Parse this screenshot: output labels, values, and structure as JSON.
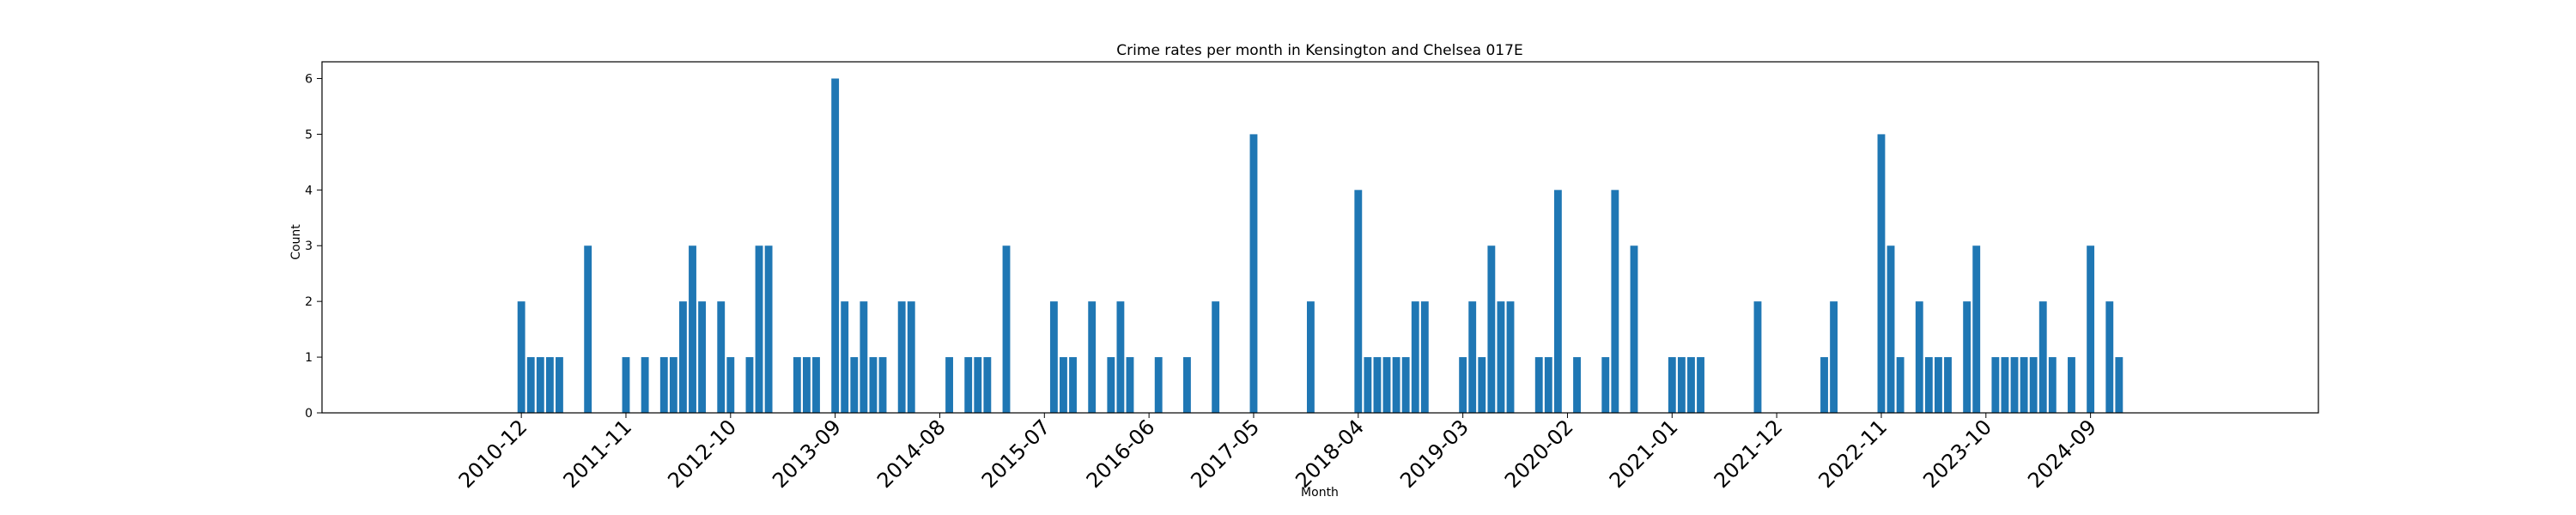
{
  "chart_data": {
    "type": "bar",
    "title": "Crime rates per month in Kensington and Chelsea 017E",
    "xlabel": "Month",
    "ylabel": "Count",
    "ylim": [
      0,
      6.3
    ],
    "yticks": [
      0,
      1,
      2,
      3,
      4,
      5,
      6
    ],
    "xtick_labels": [
      "2010-12",
      "2011-11",
      "2012-10",
      "2013-09",
      "2014-08",
      "2015-07",
      "2016-06",
      "2017-05",
      "2018-04",
      "2019-03",
      "2020-02",
      "2021-01",
      "2021-12",
      "2022-11",
      "2023-10",
      "2024-09"
    ],
    "x": [
      "2010-12",
      "2011-01",
      "2011-02",
      "2011-03",
      "2011-04",
      "2011-07",
      "2011-11",
      "2012-01",
      "2012-03",
      "2012-04",
      "2012-05",
      "2012-06",
      "2012-07",
      "2012-09",
      "2012-10",
      "2012-12",
      "2013-01",
      "2013-02",
      "2013-05",
      "2013-06",
      "2013-07",
      "2013-09",
      "2013-10",
      "2013-11",
      "2013-12",
      "2014-01",
      "2014-02",
      "2014-04",
      "2014-05",
      "2014-09",
      "2014-11",
      "2014-12",
      "2015-01",
      "2015-03",
      "2015-08",
      "2015-09",
      "2015-10",
      "2015-12",
      "2016-02",
      "2016-03",
      "2016-04",
      "2016-07",
      "2016-10",
      "2017-01",
      "2017-05",
      "2017-11",
      "2018-04",
      "2018-05",
      "2018-06",
      "2018-07",
      "2018-08",
      "2018-09",
      "2018-10",
      "2018-11",
      "2019-03",
      "2019-04",
      "2019-05",
      "2019-06",
      "2019-07",
      "2019-08",
      "2019-11",
      "2019-12",
      "2020-01",
      "2020-03",
      "2020-06",
      "2020-07",
      "2020-09",
      "2021-01",
      "2021-02",
      "2021-03",
      "2021-04",
      "2021-10",
      "2022-05",
      "2022-06",
      "2022-11",
      "2022-12",
      "2023-01",
      "2023-03",
      "2023-04",
      "2023-05",
      "2023-06",
      "2023-08",
      "2023-09",
      "2023-11",
      "2023-12",
      "2024-01",
      "2024-02",
      "2024-03",
      "2024-04",
      "2024-05",
      "2024-07",
      "2024-09",
      "2024-11",
      "2024-12"
    ],
    "values": [
      2,
      1,
      1,
      1,
      1,
      3,
      1,
      1,
      1,
      1,
      2,
      3,
      2,
      2,
      1,
      1,
      3,
      3,
      1,
      1,
      1,
      6,
      2,
      1,
      2,
      1,
      1,
      2,
      2,
      1,
      1,
      1,
      1,
      3,
      2,
      1,
      1,
      2,
      1,
      2,
      1,
      1,
      1,
      2,
      5,
      2,
      4,
      1,
      1,
      1,
      1,
      1,
      2,
      2,
      1,
      2,
      1,
      3,
      2,
      2,
      1,
      1,
      4,
      1,
      1,
      4,
      3,
      1,
      1,
      1,
      1,
      2,
      1,
      2,
      5,
      3,
      1,
      2,
      1,
      1,
      1,
      2,
      3,
      1,
      1,
      1,
      1,
      1,
      2,
      1,
      1,
      3,
      2,
      1
    ],
    "bar_color": "#1f77b4",
    "grid": false
  }
}
